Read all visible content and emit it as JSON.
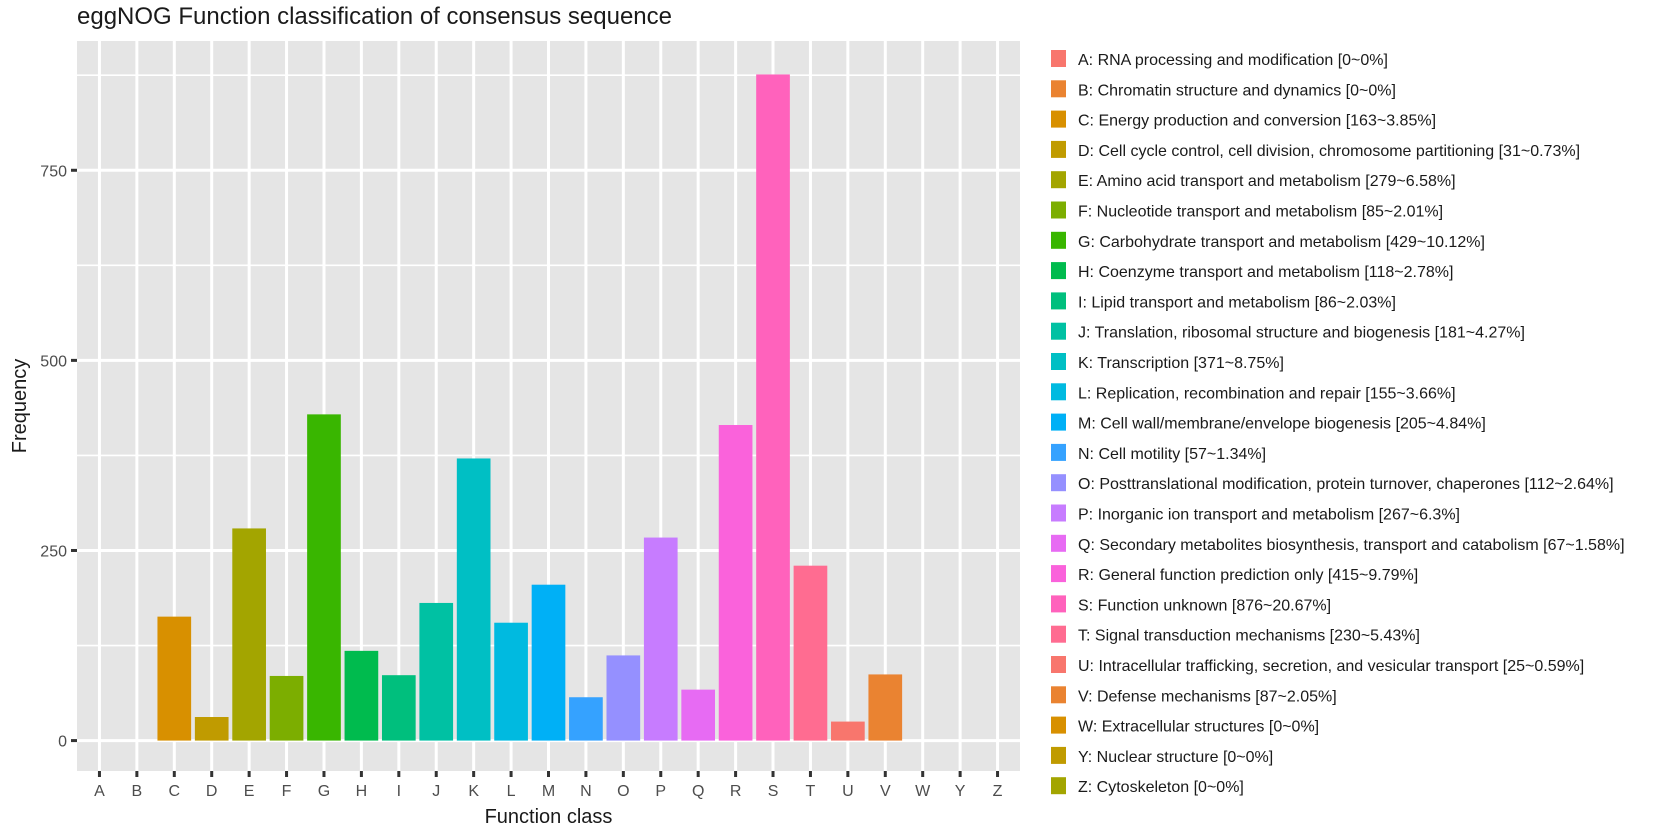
{
  "chart_data": {
    "type": "bar",
    "title": "eggNOG Function classification of consensus sequence",
    "xlabel": "Function class",
    "ylabel": "Frequency",
    "ylim": [
      -40,
      920
    ],
    "yticks": [
      0,
      250,
      500,
      750
    ],
    "ytick_labels": [
      "0",
      "250",
      "500",
      "750"
    ],
    "grid": true,
    "legend_position": "right",
    "categories": [
      "A",
      "B",
      "C",
      "D",
      "E",
      "F",
      "G",
      "H",
      "I",
      "J",
      "K",
      "L",
      "M",
      "N",
      "O",
      "P",
      "Q",
      "R",
      "S",
      "T",
      "U",
      "V",
      "W",
      "Y",
      "Z"
    ],
    "values": [
      0,
      0,
      163,
      31,
      279,
      85,
      429,
      118,
      86,
      181,
      371,
      155,
      205,
      57,
      112,
      267,
      67,
      415,
      876,
      230,
      25,
      87,
      0,
      0,
      0
    ],
    "colors": [
      "#F8766D",
      "#EA8331",
      "#D89000",
      "#C09B00",
      "#A3A500",
      "#7CAE00",
      "#39B600",
      "#00BB4E",
      "#00BF7D",
      "#00C1A3",
      "#00BFC4",
      "#00BAE0",
      "#00B0F6",
      "#35A2FF",
      "#9590FF",
      "#C77CFF",
      "#E76BF3",
      "#FA62DB",
      "#FF62BC",
      "#FF6C91",
      "#F8766D",
      "#EA8331",
      "#D89000",
      "#C09B00",
      "#A3A500"
    ],
    "legend": [
      "A: RNA processing and modification [0~0%]",
      "B: Chromatin structure and dynamics [0~0%]",
      "C: Energy production and conversion [163~3.85%]",
      "D: Cell cycle control, cell division, chromosome partitioning [31~0.73%]",
      "E: Amino acid transport and metabolism [279~6.58%]",
      "F: Nucleotide transport and metabolism [85~2.01%]",
      "G: Carbohydrate transport and metabolism [429~10.12%]",
      "H: Coenzyme transport and metabolism [118~2.78%]",
      "I: Lipid transport and metabolism [86~2.03%]",
      "J: Translation, ribosomal structure and biogenesis [181~4.27%]",
      "K: Transcription [371~8.75%]",
      "L: Replication, recombination and repair [155~3.66%]",
      "M: Cell wall/membrane/envelope biogenesis [205~4.84%]",
      "N: Cell motility [57~1.34%]",
      "O: Posttranslational modification, protein turnover, chaperones [112~2.64%]",
      "P: Inorganic ion transport and metabolism [267~6.3%]",
      "Q: Secondary metabolites biosynthesis, transport and catabolism [67~1.58%]",
      "R: General function prediction only [415~9.79%]",
      "S: Function unknown [876~20.67%]",
      "T: Signal transduction mechanisms [230~5.43%]",
      "U: Intracellular trafficking, secretion, and vesicular transport [25~0.59%]",
      "V: Defense mechanisms [87~2.05%]",
      "W: Extracellular structures [0~0%]",
      "Y: Nuclear structure [0~0%]",
      "Z: Cytoskeleton [0~0%]"
    ]
  }
}
